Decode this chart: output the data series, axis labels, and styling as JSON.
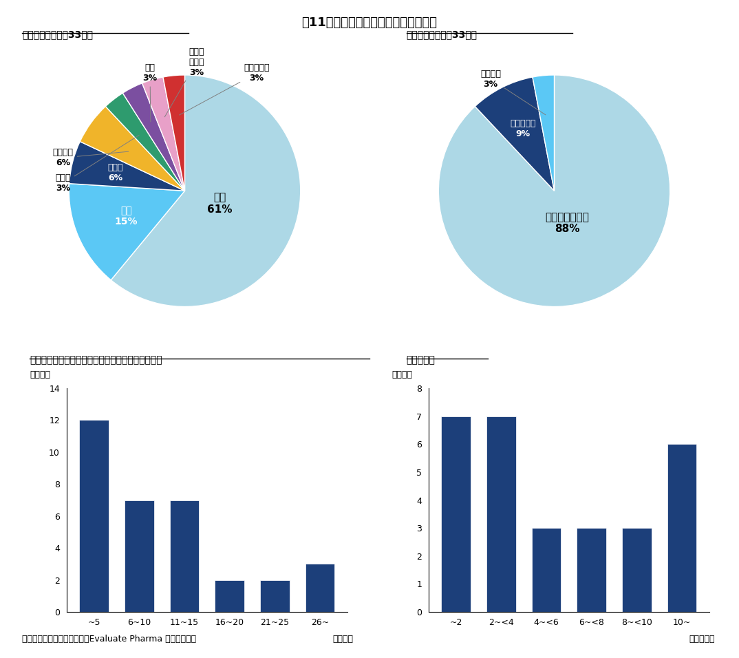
{
  "title": "図11　被買収企業の特性と買収額分布",
  "pie1_title": "被買収企業国籍（33社）",
  "pie1_labels": [
    "米国",
    "英国",
    "カナダ",
    "ベルギー",
    "トルコ",
    "日本",
    "アイルランド",
    "イスラエル"
  ],
  "pie1_values": [
    61,
    15,
    6,
    6,
    3,
    3,
    3,
    3
  ],
  "pie1_colors": [
    "#ADD8E6",
    "#5BC8F5",
    "#1C3F7A",
    "#F0B42A",
    "#2E9B6E",
    "#7B4FA0",
    "#E8A0C8",
    "#D03030"
  ],
  "pie2_title": "被買収企業分類（33社）",
  "pie2_labels": [
    "創薬ベンチャー",
    "その他企業",
    "製薬企業"
  ],
  "pie2_values": [
    88,
    9,
    3
  ],
  "pie2_colors": [
    "#ADD8E6",
    "#1C3F7A",
    "#5BC8F5"
  ],
  "bar1_title": "被買収企業設立からプレスリリースまでの期間分布",
  "bar1_xlabel": "（年間）",
  "bar1_ylabel": "（件数）",
  "bar1_categories": [
    "~5",
    "6~10",
    "11~15",
    "16~20",
    "21~25",
    "26~"
  ],
  "bar1_values": [
    12,
    7,
    7,
    2,
    2,
    3
  ],
  "bar1_ylim": [
    0,
    14
  ],
  "bar1_yticks": [
    0,
    2,
    4,
    6,
    8,
    10,
    12,
    14
  ],
  "bar1_color": "#1C3F7A",
  "bar2_title": "買収額分布",
  "bar2_xlabel": "（億ドル）",
  "bar2_ylabel": "（件数）",
  "bar2_categories": [
    "~2",
    "2~<4",
    "4~<6",
    "6~<8",
    "8~<10",
    "10~"
  ],
  "bar2_values": [
    7,
    7,
    3,
    3,
    3,
    6
  ],
  "bar2_ylim": [
    0,
    8
  ],
  "bar2_yticks": [
    0,
    1,
    2,
    3,
    4,
    5,
    6,
    7,
    8
  ],
  "bar2_color": "#1C3F7A",
  "footnote": "出所：各社プレスリリース、Evaluate Pharma をもとに作成",
  "bg_color": "#FFFFFF"
}
